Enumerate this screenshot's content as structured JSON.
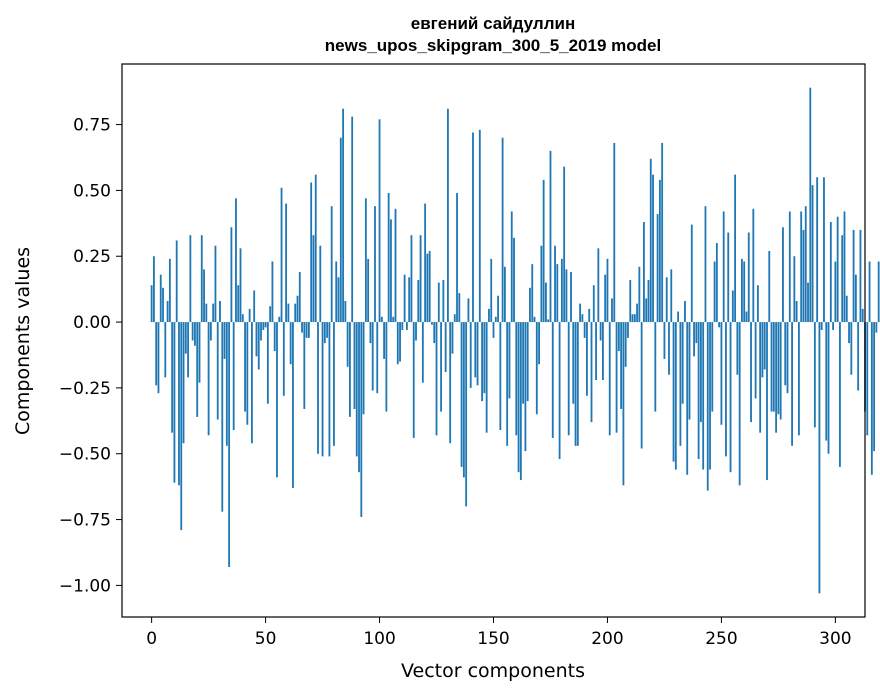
{
  "chart_data": {
    "type": "bar",
    "title_line1": "евгений сайдуллин",
    "title_line2": "news_upos_skipgram_300_5_2019 model",
    "xlabel": "Vector components",
    "ylabel": "Components values",
    "xlim": [
      -13,
      313
    ],
    "ylim": [
      -1.12,
      0.98
    ],
    "xticks": [
      0,
      50,
      100,
      150,
      200,
      250,
      300
    ],
    "xtick_labels": [
      "0",
      "50",
      "100",
      "150",
      "200",
      "250",
      "300"
    ],
    "yticks": [
      -1.0,
      -0.75,
      -0.5,
      -0.25,
      0.0,
      0.25,
      0.5,
      0.75
    ],
    "ytick_labels": [
      "−1.00",
      "−0.75",
      "−0.50",
      "−0.25",
      "0.00",
      "0.25",
      "0.50",
      "0.75"
    ],
    "bar_color": "#1f77b4",
    "grid": false,
    "values": [
      0.14,
      0.25,
      -0.24,
      -0.27,
      0.18,
      0.13,
      -0.21,
      0.08,
      0.24,
      -0.42,
      -0.61,
      0.31,
      -0.62,
      -0.79,
      -0.46,
      -0.12,
      -0.21,
      0.33,
      -0.07,
      -0.09,
      -0.36,
      -0.23,
      0.33,
      0.2,
      0.07,
      -0.43,
      -0.07,
      0.07,
      0.29,
      -0.37,
      0.08,
      -0.72,
      -0.14,
      -0.47,
      -0.93,
      0.36,
      -0.41,
      0.47,
      0.14,
      0.28,
      0.03,
      -0.34,
      -0.39,
      0.05,
      -0.46,
      0.12,
      -0.13,
      -0.18,
      -0.07,
      -0.03,
      -0.02,
      -0.31,
      0.06,
      0.23,
      -0.11,
      -0.59,
      0.02,
      0.51,
      -0.28,
      0.45,
      0.07,
      -0.16,
      -0.63,
      0.07,
      0.1,
      0.19,
      -0.04,
      -0.33,
      -0.06,
      -0.06,
      0.53,
      0.33,
      0.56,
      -0.5,
      0.29,
      -0.51,
      -0.08,
      -0.06,
      -0.51,
      0.44,
      -0.47,
      0.23,
      0.17,
      0.7,
      0.81,
      0.08,
      -0.17,
      -0.36,
      0.78,
      -0.33,
      -0.51,
      -0.57,
      -0.74,
      -0.35,
      0.47,
      0.24,
      -0.08,
      -0.26,
      0.44,
      -0.27,
      0.77,
      0.02,
      -0.14,
      -0.34,
      0.49,
      0.39,
      0.02,
      0.43,
      -0.16,
      -0.15,
      -0.03,
      0.18,
      -0.03,
      0.17,
      0.33,
      -0.44,
      -0.07,
      0.16,
      0.33,
      -0.23,
      0.45,
      0.26,
      0.27,
      -0.01,
      -0.08,
      -0.43,
      0.15,
      -0.34,
      0.16,
      -0.19,
      0.81,
      -0.46,
      -0.12,
      0.03,
      0.49,
      0.11,
      -0.55,
      -0.59,
      -0.7,
      0.09,
      -0.25,
      0.72,
      -0.21,
      -0.24,
      0.73,
      -0.3,
      -0.27,
      -0.42,
      0.05,
      0.24,
      -0.06,
      0.02,
      0.1,
      -0.41,
      0.7,
      0.21,
      -0.47,
      -0.29,
      0.42,
      0.32,
      -0.43,
      -0.57,
      -0.6,
      -0.31,
      -0.49,
      -0.3,
      0.13,
      0.22,
      0.02,
      -0.35,
      -0.16,
      0.29,
      0.54,
      0.15,
      0.01,
      0.65,
      -0.44,
      0.29,
      0.22,
      -0.52,
      0.24,
      0.59,
      0.2,
      -0.43,
      0.19,
      -0.31,
      -0.47,
      -0.47,
      0.07,
      0.03,
      -0.06,
      -0.28,
      0.05,
      -0.38,
      0.14,
      -0.22,
      0.28,
      -0.07,
      -0.22,
      0.18,
      0.24,
      -0.43,
      0.09,
      0.68,
      -0.42,
      -0.11,
      -0.33,
      -0.62,
      -0.17,
      -0.06,
      0.16,
      0.03,
      0.03,
      0.07,
      0.21,
      -0.48,
      0.38,
      0.09,
      0.16,
      0.62,
      0.56,
      -0.34,
      0.41,
      0.54,
      0.68,
      -0.14,
      0.17,
      -0.2,
      0.2,
      -0.53,
      -0.56,
      0.04,
      -0.47,
      -0.31,
      0.08,
      -0.58,
      -0.37,
      0.37,
      -0.13,
      -0.08,
      -0.52,
      -0.38,
      -0.56,
      0.44,
      -0.64,
      -0.56,
      -0.34,
      0.23,
      0.3,
      -0.02,
      -0.39,
      0.42,
      -0.51,
      0.34,
      -0.57,
      0.12,
      0.56,
      -0.2,
      -0.62,
      0.24,
      0.23,
      0.04,
      0.34,
      -0.38,
      0.43,
      -0.29,
      0.14,
      -0.42,
      -0.21,
      -0.18,
      -0.6,
      0.27,
      -0.34,
      -0.34,
      -0.42,
      -0.35,
      -0.37,
      0.36,
      -0.24,
      -0.27,
      0.42,
      -0.47,
      0.25,
      0.08,
      -0.43,
      0.42,
      0.35,
      0.44,
      0.15,
      0.89,
      0.52,
      -0.4,
      0.55,
      -1.03,
      -0.03,
      0.55,
      -0.45,
      -0.5,
      0.38,
      -0.03,
      0.23,
      0.4,
      -0.55,
      0.33,
      0.42,
      0.1,
      -0.08,
      -0.2,
      0.35,
      0.18,
      -0.26,
      0.35,
      0.05,
      -0.34,
      -0.43,
      0.23,
      -0.58,
      -0.49,
      -0.04,
      0.23,
      0.41,
      0.01,
      -0.12
    ]
  }
}
